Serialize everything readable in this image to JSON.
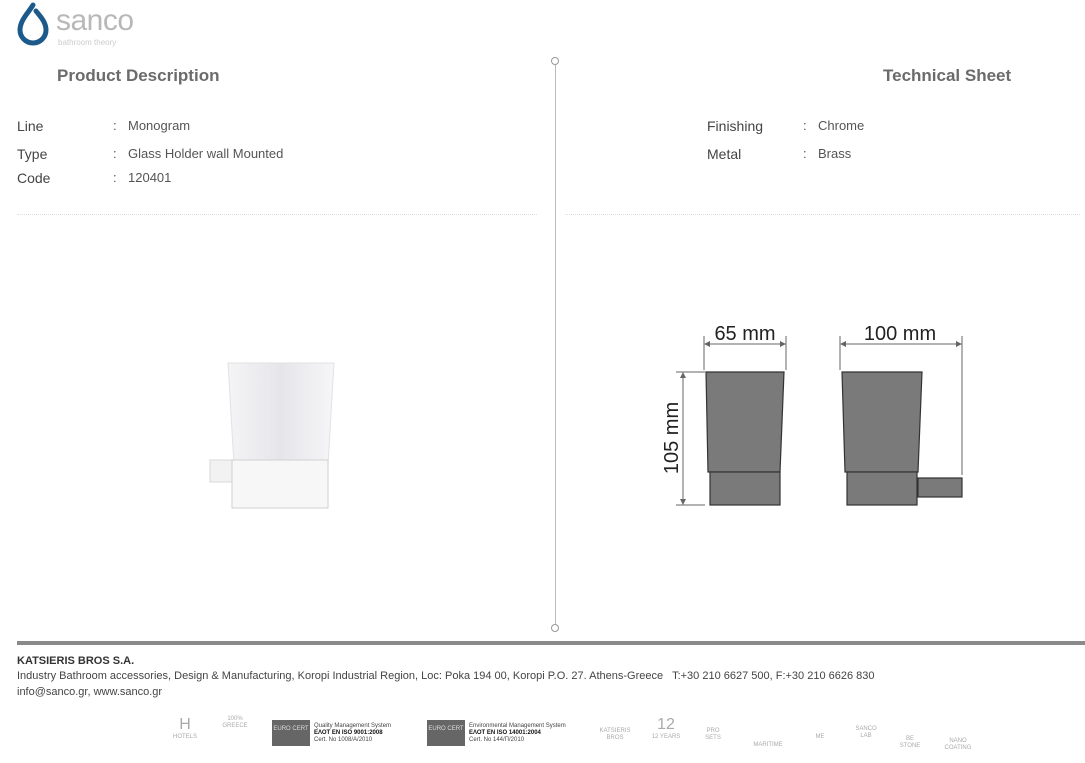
{
  "brand": {
    "name": "sanco",
    "tagline": "bathroom theory",
    "color": "#1d5a8c"
  },
  "left": {
    "title": "Product Description",
    "specs": [
      {
        "label": "Line",
        "value": "Monogram"
      },
      {
        "label": "Type",
        "value": "Glass Holder wall Mounted"
      },
      {
        "label": "Code",
        "value": "120401"
      }
    ]
  },
  "right": {
    "title": "Technical Sheet",
    "specs": [
      {
        "label": "Finishing",
        "value": "Chrome"
      },
      {
        "label": "Metal",
        "value": "Brass"
      }
    ],
    "dimensions": {
      "width_front": "65 mm",
      "depth": "100 mm",
      "height": "105 mm"
    }
  },
  "separator": ":",
  "footer": {
    "company": "KATSIERIS BROS S.A.",
    "address": "Industry Bathroom accessories, Design & Manufacturing, Koropi Industrial Region, Loc: Poka 194 00, Koropi P.O. 27. Athens-Greece   T:+30 210 6627 500, F:+30 210 6626 830",
    "contact": "info@sanco.gr, www.sanco.gr",
    "certs": [
      {
        "logo": "EURO CERT",
        "title": "Quality Management System",
        "std": "ΕΛΟΤ EN ISO 9001:2008",
        "no": "Cert. No 1008/A/2010"
      },
      {
        "logo": "EURO CERT",
        "title": "Environmental Management System",
        "std": "ΕΛΟΤ EN ISO 14001:2004",
        "no": "Cert. No 144/Π/2010"
      }
    ],
    "badges": [
      "HOTELS",
      "100% GREECE",
      "KATSIERIS BROS",
      "12 YEARS",
      "PRO SETS",
      "MARITIME",
      "ME",
      "SANCO LAB",
      "BE STONE",
      "NANO COATING"
    ]
  }
}
